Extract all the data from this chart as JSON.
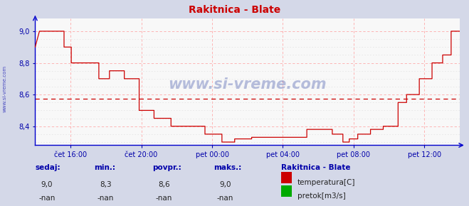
{
  "title": "Rakitnica - Blate",
  "bg_color": "#d4d8e8",
  "plot_bg_color": "#f8f8f8",
  "line_color": "#cc0000",
  "axis_color": "#0000cc",
  "grid_color_major": "#ffaaaa",
  "grid_color_minor": "#e8e8e8",
  "ylim": [
    8.28,
    9.08
  ],
  "yticks": [
    8.4,
    8.6,
    8.8,
    9.0
  ],
  "ylabel_color": "#0000aa",
  "avg_line_y": 8.575,
  "avg_line_color": "#cc0000",
  "watermark_text": "www.si-vreme.com",
  "watermark_color": "#1a3399",
  "watermark_alpha": 0.3,
  "xlabel_color": "#0000aa",
  "xtick_labels": [
    "čet 16:00",
    "čet 20:00",
    "pet 00:00",
    "pet 04:00",
    "pet 08:00",
    "pet 12:00"
  ],
  "left_label": "www.si-vreme.com",
  "left_label_color": "#0000aa",
  "temp_data_x": [
    0.0,
    0.0,
    0.01,
    0.01,
    0.02,
    0.02,
    0.068,
    0.068,
    0.085,
    0.085,
    0.15,
    0.15,
    0.175,
    0.175,
    0.21,
    0.21,
    0.245,
    0.245,
    0.28,
    0.28,
    0.32,
    0.32,
    0.4,
    0.4,
    0.44,
    0.44,
    0.47,
    0.47,
    0.51,
    0.51,
    0.575,
    0.575,
    0.64,
    0.64,
    0.7,
    0.7,
    0.725,
    0.725,
    0.74,
    0.74,
    0.76,
    0.76,
    0.79,
    0.79,
    0.82,
    0.82,
    0.855,
    0.855,
    0.875,
    0.875,
    0.905,
    0.905,
    0.935,
    0.935,
    0.96,
    0.96,
    0.98,
    0.98,
    1.0,
    1.0
  ],
  "temp_data_y": [
    8.9,
    8.9,
    9.0,
    9.0,
    9.0,
    9.0,
    9.0,
    8.9,
    8.9,
    8.8,
    8.8,
    8.7,
    8.7,
    8.75,
    8.75,
    8.7,
    8.7,
    8.5,
    8.5,
    8.45,
    8.45,
    8.4,
    8.4,
    8.35,
    8.35,
    8.3,
    8.3,
    8.32,
    8.32,
    8.33,
    8.33,
    8.33,
    8.33,
    8.38,
    8.38,
    8.35,
    8.35,
    8.3,
    8.3,
    8.32,
    8.32,
    8.35,
    8.35,
    8.38,
    8.38,
    8.4,
    8.4,
    8.55,
    8.55,
    8.6,
    8.6,
    8.7,
    8.7,
    8.8,
    8.8,
    8.85,
    8.85,
    9.0,
    9.0,
    9.0
  ],
  "legend_title": "Rakitnica - Blate",
  "legend_temp_label": "temperatura[C]",
  "legend_flow_label": "pretok[m3/s]",
  "legend_temp_color": "#cc0000",
  "legend_flow_color": "#00aa00",
  "stats_headers": [
    "sedaj:",
    "min.:",
    "povpr.:",
    "maks.:"
  ],
  "stats_vals1": [
    "9,0",
    "8,3",
    "8,6",
    "9,0"
  ],
  "stats_vals2": [
    "-nan",
    "-nan",
    "-nan",
    "-nan"
  ]
}
